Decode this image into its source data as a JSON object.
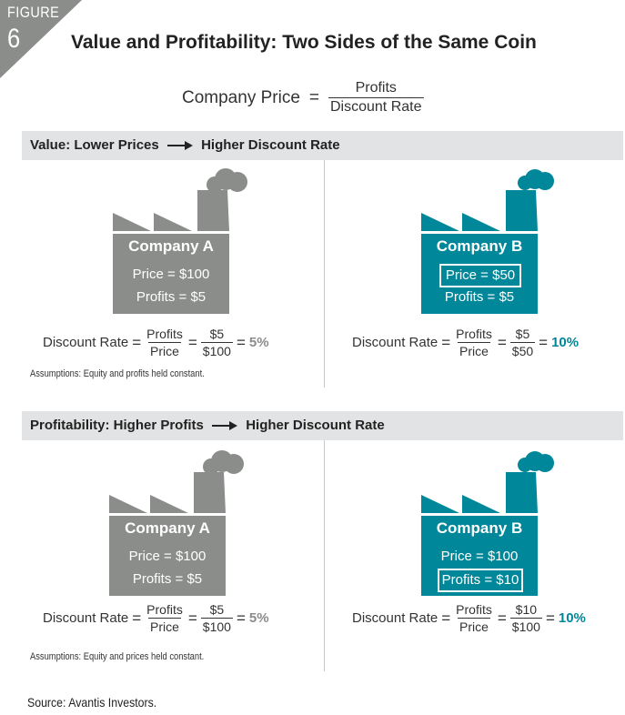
{
  "badge": {
    "word": "FIGURE",
    "number": "6"
  },
  "title": "Value and Profitability: Two Sides of the Same Coin",
  "main_formula": {
    "lhs": "Company Price",
    "eq": "=",
    "numerator": "Profits",
    "denominator": "Discount Rate"
  },
  "colors": {
    "gray": "#8b8d8b",
    "teal": "#00879a",
    "bar": "#e2e3e4"
  },
  "sections": [
    {
      "heading": "Value: Lower Prices",
      "heading_result": "Higher Discount Rate",
      "left": {
        "company": "Company A",
        "line1": "Price = $100",
        "line2": "Profits = $5",
        "dr_label": "Discount Rate",
        "f_num": "Profits",
        "f_den": "Price",
        "v_num": "$5",
        "v_den": "$100",
        "result": "5%"
      },
      "right": {
        "company": "Company B",
        "line1": "Price = $50",
        "line2": "Profits = $5",
        "dr_label": "Discount Rate",
        "f_num": "Profits",
        "f_den": "Price",
        "v_num": "$5",
        "v_den": "$50",
        "result": "10%"
      },
      "assumption": "Assumptions: Equity and profits held constant."
    },
    {
      "heading": "Profitability: Higher Profits",
      "heading_result": "Higher Discount Rate",
      "left": {
        "company": "Company A",
        "line1": "Price = $100",
        "line2": "Profits = $5",
        "dr_label": "Discount Rate",
        "f_num": "Profits",
        "f_den": "Price",
        "v_num": "$5",
        "v_den": "$100",
        "result": "5%"
      },
      "right": {
        "company": "Company B",
        "line1": "Price = $100",
        "line2": "Profits = $10",
        "dr_label": "Discount Rate",
        "f_num": "Profits",
        "f_den": "Price",
        "v_num": "$10",
        "v_den": "$100",
        "result": "10%"
      },
      "assumption": "Assumptions: Equity and prices held constant."
    }
  ],
  "source": "Source: Avantis Investors."
}
